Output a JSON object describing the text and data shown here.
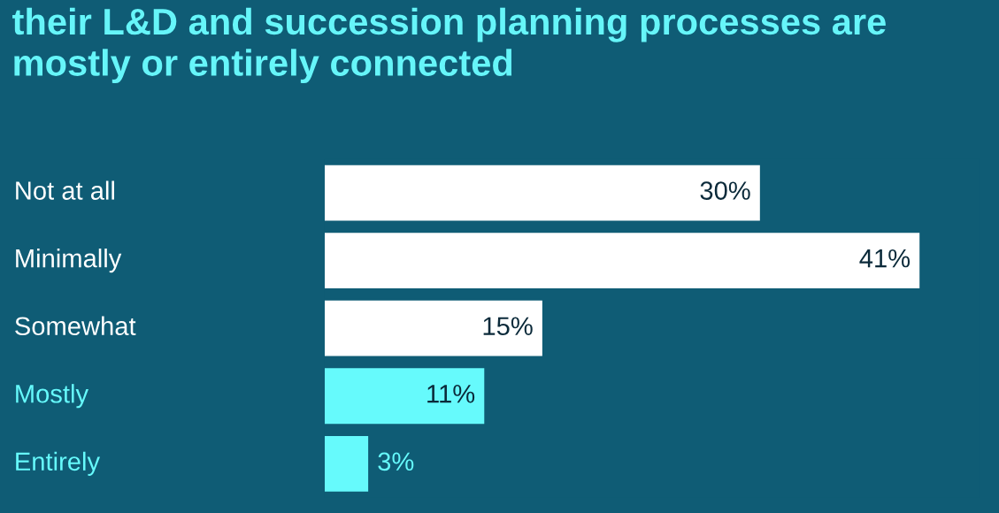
{
  "chart_data": {
    "type": "bar",
    "orientation": "horizontal",
    "title": "their L&D and succession planning processes are mostly or entirely connected",
    "categories": [
      "Not at all",
      "Minimally",
      "Somewhat",
      "Mostly",
      "Entirely"
    ],
    "values": [
      30,
      41,
      15,
      11,
      3
    ],
    "colors": [
      "#ffffff",
      "#ffffff",
      "#ffffff",
      "#66fafc",
      "#66fafc"
    ],
    "value_labels": [
      "30%",
      "41%",
      "15%",
      "11%",
      "3%"
    ]
  }
}
